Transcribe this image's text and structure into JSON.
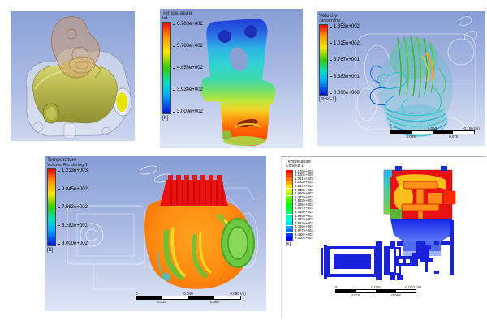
{
  "panels": {
    "temperature_contour": {
      "legend_title": "Temperature",
      "legend_subtitle": "tat",
      "values": [
        "6.708e+002",
        "5.783e+002",
        "4.858e+002",
        "3.934e+002",
        "3.009e+002"
      ],
      "unit": "[K]"
    },
    "velocity_streamlines": {
      "legend_title": "Velocity",
      "legend_subtitle": "Streamline 1",
      "values": [
        "1.353e+002",
        "1.015e+002",
        "6.767e+001",
        "3.383e+001",
        "0.000e+000"
      ],
      "unit": "[m s^-1]",
      "ruler": {
        "top": [
          "0",
          "0.050",
          "0.100 (m)"
        ],
        "bottom": [
          "0.025",
          "0.075"
        ]
      }
    },
    "temperature_volume": {
      "legend_title": "Temperature",
      "legend_subtitle": "Volume Rendering 1",
      "values": [
        "1.213e+003",
        "9.845e+002",
        "7.563e+002",
        "5.282e+002",
        "3.000e+002"
      ],
      "unit": "[K]",
      "ruler": {
        "top": [
          "0",
          "0.040",
          "0.080 (m)"
        ],
        "bottom": [
          "0.020",
          "0.060"
        ]
      }
    },
    "temperature_contour_2d": {
      "legend_title": "Temperature",
      "legend_subtitle": "Contour 1",
      "values": [
        "1.179e+003",
        "1.130e+003",
        "1.081e+003",
        "1.033e+003",
        "9.837e+002",
        "9.348e+002",
        "8.860e+002",
        "8.372e+002",
        "7.883e+002",
        "7.395e+002",
        "6.907e+002",
        "6.418e+002",
        "5.930e+002",
        "5.442e+002",
        "4.953e+002",
        "4.465e+002",
        "3.977e+002",
        "3.488e+002",
        "3.000e+002"
      ],
      "unit": "[K]",
      "ruler": {
        "top": [
          "0",
          "0.035",
          "0.070 (m)"
        ],
        "bottom": [
          "0.018",
          "0.053"
        ]
      }
    }
  },
  "colors": {
    "rainbow_top": "#ff0000",
    "rainbow_bottom": "#0011e0",
    "viewport_top": "#879dd4",
    "viewport_bottom": "#dfe6f6",
    "hot_red": "#e81010",
    "cold_blue": "#1822dd",
    "cad_body_olive": "#b9b94f",
    "cad_bracket_tan": "#c79a6b"
  }
}
